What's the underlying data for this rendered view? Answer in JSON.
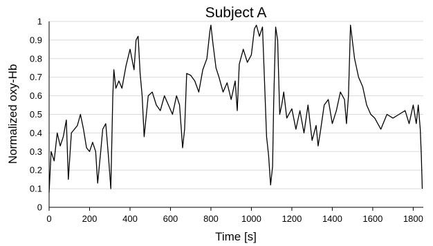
{
  "chart_data": {
    "type": "line",
    "title": "Subject A",
    "xlabel": "Time [s]",
    "ylabel": "Normalized oxy-Hb",
    "xlim": [
      0,
      1850
    ],
    "ylim": [
      0,
      1
    ],
    "xticks": [
      "0",
      "200",
      "400",
      "600",
      "800",
      "1000",
      "1200",
      "1400",
      "1600",
      "1800"
    ],
    "yticks": [
      "0",
      "0.1",
      "0.2",
      "0.3",
      "0.4",
      "0.5",
      "0.6",
      "0.7",
      "0.8",
      "0.9",
      "1"
    ],
    "grid": "horizontal",
    "legend": "none",
    "series": [
      {
        "color": "#000000",
        "x": [
          0,
          10,
          25,
          40,
          55,
          70,
          85,
          95,
          110,
          125,
          140,
          155,
          170,
          185,
          200,
          215,
          230,
          240,
          255,
          265,
          280,
          295,
          305,
          315,
          320,
          330,
          345,
          360,
          380,
          400,
          420,
          430,
          440,
          450,
          460,
          470,
          490,
          510,
          530,
          550,
          570,
          590,
          610,
          630,
          645,
          660,
          670,
          680,
          700,
          720,
          740,
          760,
          780,
          795,
          800,
          810,
          825,
          840,
          860,
          880,
          900,
          920,
          930,
          940,
          960,
          980,
          1000,
          1015,
          1025,
          1040,
          1055,
          1065,
          1075,
          1085,
          1095,
          1105,
          1110,
          1120,
          1130,
          1140,
          1150,
          1160,
          1175,
          1200,
          1220,
          1240,
          1260,
          1280,
          1300,
          1320,
          1330,
          1340,
          1360,
          1380,
          1400,
          1420,
          1440,
          1460,
          1470,
          1480,
          1490,
          1510,
          1530,
          1550,
          1570,
          1590,
          1610,
          1640,
          1670,
          1700,
          1730,
          1760,
          1780,
          1800,
          1815,
          1825,
          1835,
          1840,
          1845
        ],
        "y": [
          0.08,
          0.3,
          0.25,
          0.4,
          0.33,
          0.38,
          0.47,
          0.15,
          0.4,
          0.42,
          0.44,
          0.5,
          0.42,
          0.32,
          0.3,
          0.35,
          0.3,
          0.13,
          0.3,
          0.42,
          0.45,
          0.25,
          0.1,
          0.6,
          0.74,
          0.64,
          0.68,
          0.64,
          0.76,
          0.85,
          0.74,
          0.9,
          0.92,
          0.72,
          0.6,
          0.38,
          0.6,
          0.62,
          0.55,
          0.52,
          0.6,
          0.55,
          0.5,
          0.6,
          0.55,
          0.32,
          0.42,
          0.72,
          0.71,
          0.68,
          0.62,
          0.74,
          0.8,
          0.95,
          0.98,
          0.88,
          0.75,
          0.7,
          0.62,
          0.67,
          0.58,
          0.68,
          0.52,
          0.77,
          0.85,
          0.78,
          0.82,
          0.96,
          0.98,
          0.92,
          0.97,
          0.68,
          0.38,
          0.28,
          0.12,
          0.22,
          0.55,
          0.97,
          0.9,
          0.5,
          0.55,
          0.62,
          0.48,
          0.53,
          0.42,
          0.52,
          0.4,
          0.55,
          0.36,
          0.44,
          0.33,
          0.4,
          0.55,
          0.58,
          0.45,
          0.52,
          0.62,
          0.58,
          0.45,
          0.6,
          0.98,
          0.8,
          0.7,
          0.65,
          0.55,
          0.5,
          0.48,
          0.42,
          0.5,
          0.48,
          0.5,
          0.52,
          0.45,
          0.55,
          0.45,
          0.55,
          0.42,
          0.28,
          0.1
        ]
      }
    ]
  }
}
